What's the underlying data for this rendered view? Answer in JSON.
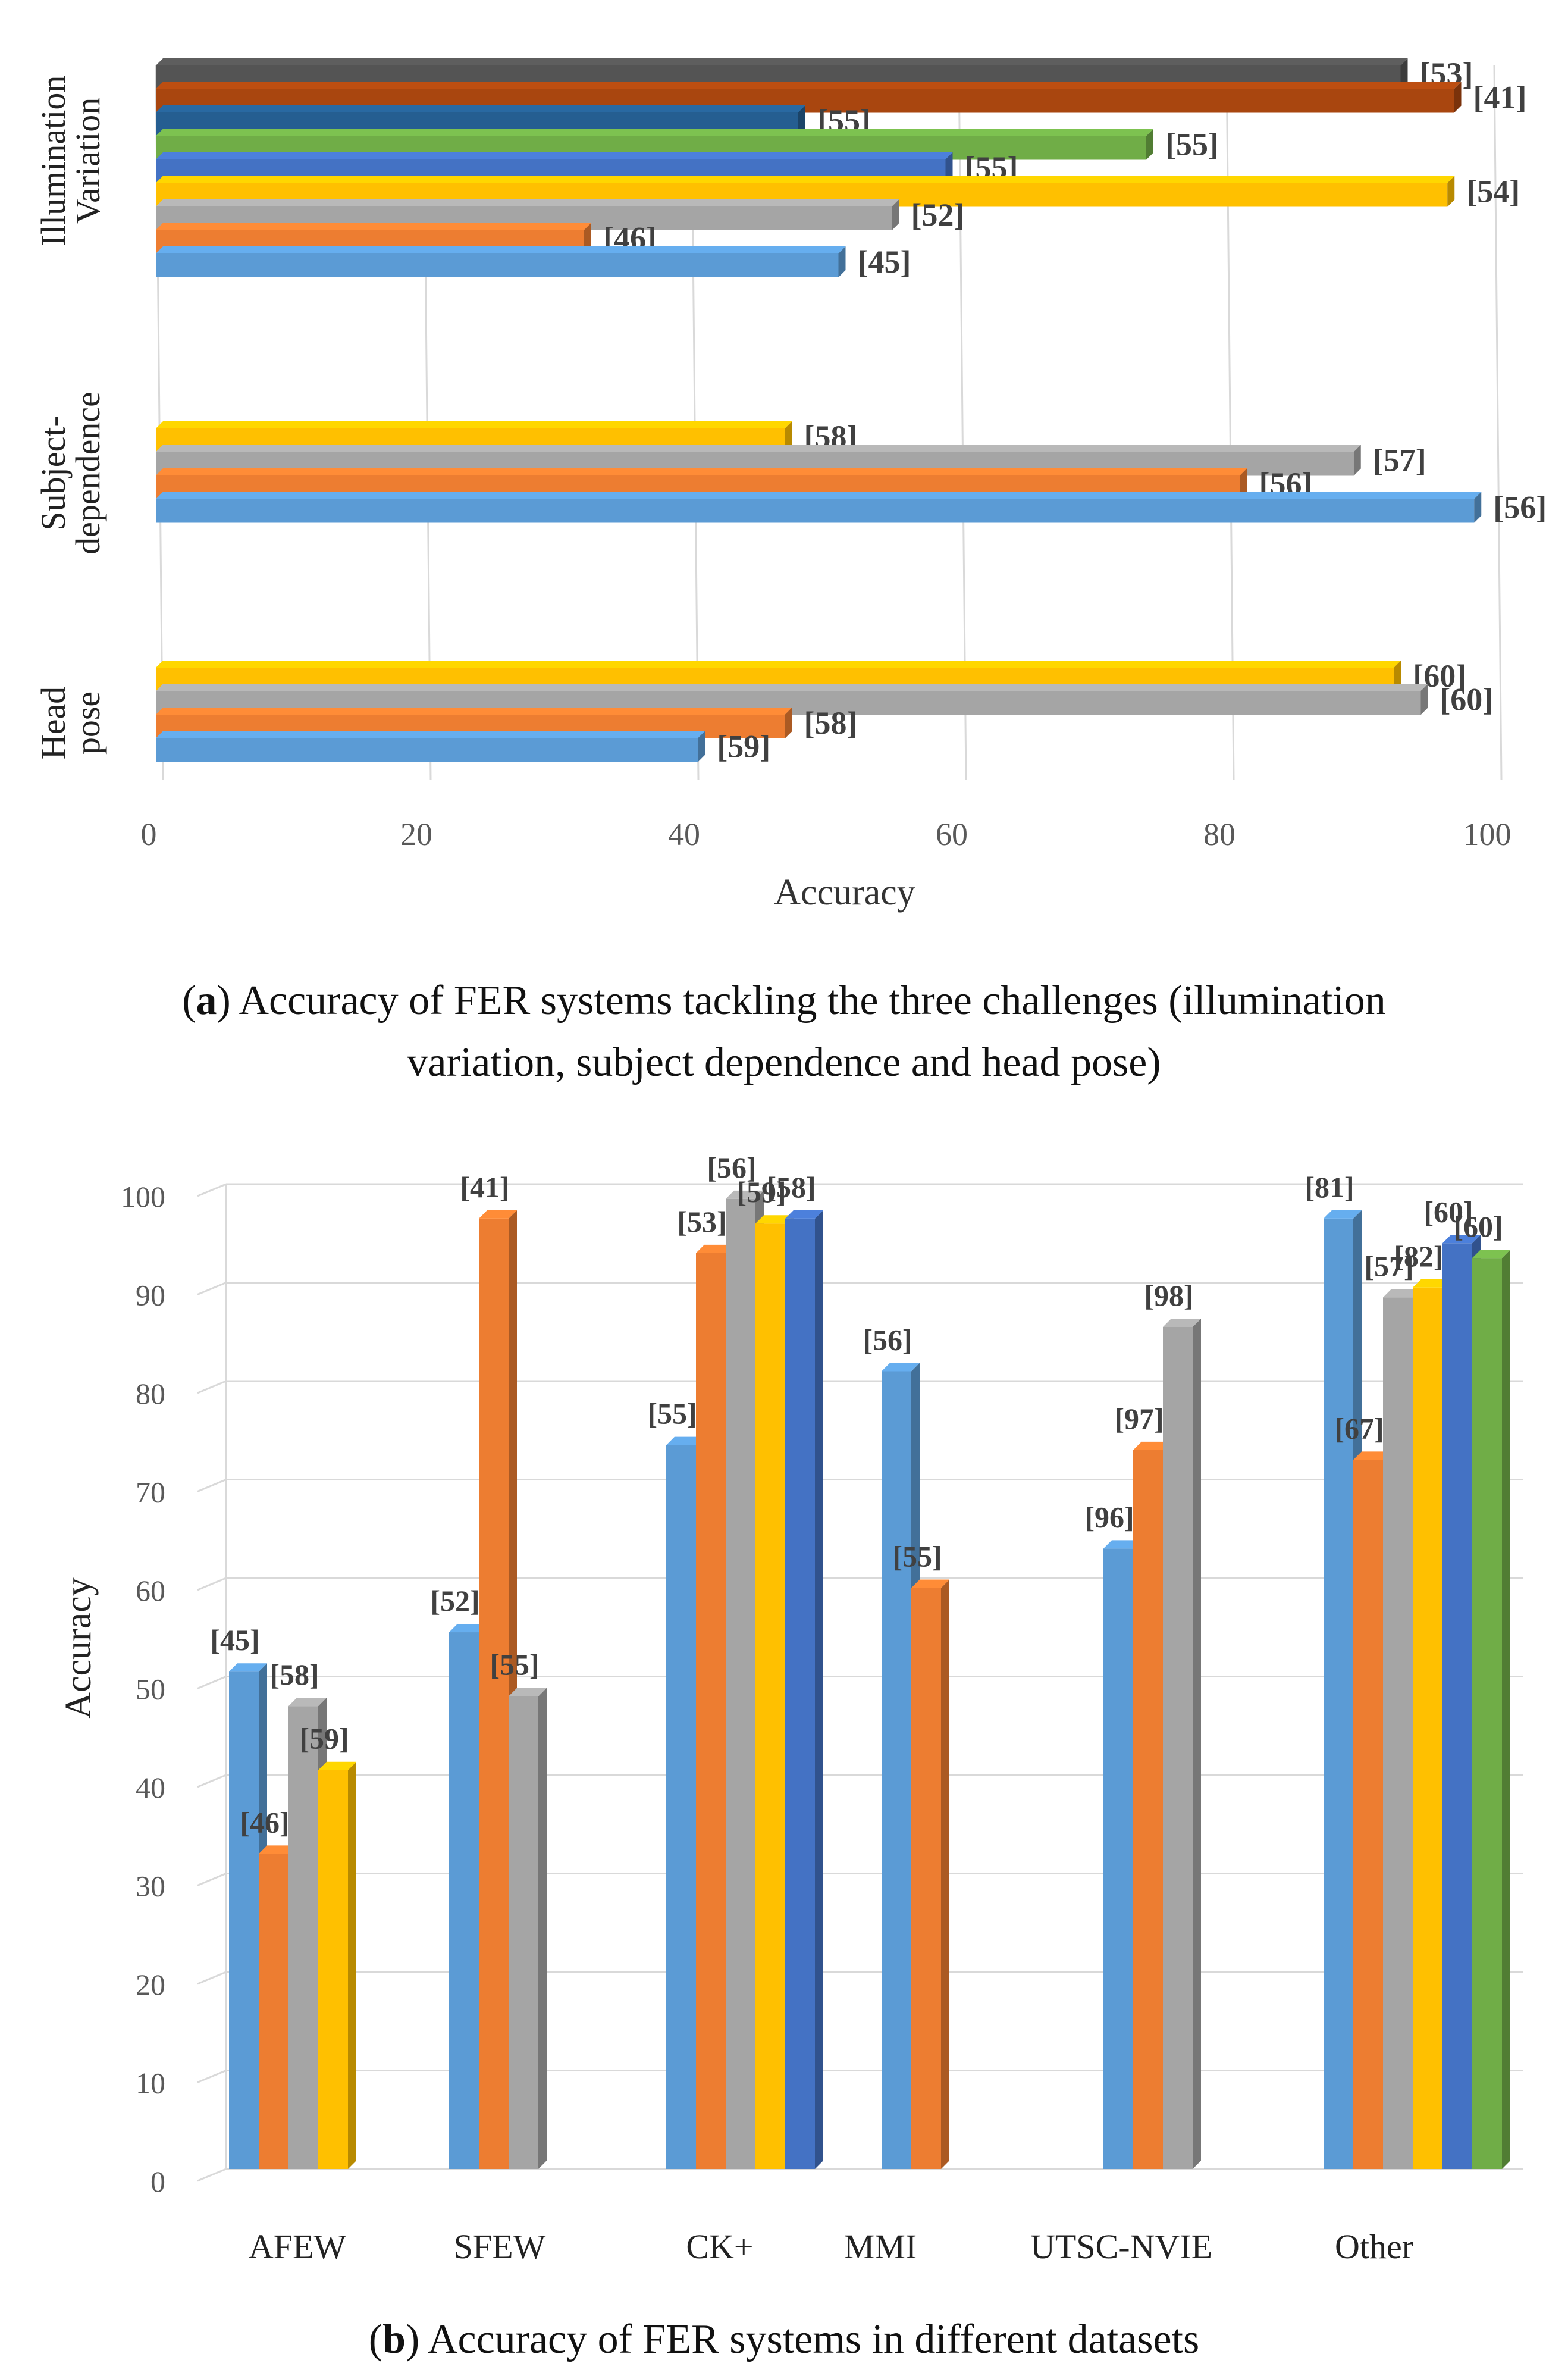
{
  "chart_data": [
    {
      "type": "bar",
      "orientation": "horizontal",
      "categories": [
        "Illumination Variation",
        "Subject-dependence",
        "Head pose"
      ],
      "category_lines": [
        [
          "Illumination",
          "Variation"
        ],
        [
          "Subject-",
          "dependence"
        ],
        [
          "Head",
          "pose"
        ]
      ],
      "groups": [
        {
          "category": "Illumination Variation",
          "bars": [
            {
              "label": "[53]",
              "value": 93,
              "color": "#545454"
            },
            {
              "label": "[41]",
              "value": 97,
              "color": "#a9460f"
            },
            {
              "label": "[55]",
              "value": 48,
              "color": "#255e91"
            },
            {
              "label": "[55]",
              "value": 74,
              "color": "#70ad47"
            },
            {
              "label": "[55]",
              "value": 59,
              "color": "#4472c4"
            },
            {
              "label": "[54]",
              "value": 96.5,
              "color": "#ffc000"
            },
            {
              "label": "[52]",
              "value": 55,
              "color": "#a5a5a5"
            },
            {
              "label": "[46]",
              "value": 32,
              "color": "#ed7d31"
            },
            {
              "label": "[45]",
              "value": 51,
              "color": "#5b9bd5"
            }
          ]
        },
        {
          "category": "Subject-dependence",
          "bars": [
            {
              "label": "[58]",
              "value": 47,
              "color": "#ffc000"
            },
            {
              "label": "[57]",
              "value": 89.5,
              "color": "#a5a5a5"
            },
            {
              "label": "[56]",
              "value": 81,
              "color": "#ed7d31"
            },
            {
              "label": "[56]",
              "value": 98.5,
              "color": "#5b9bd5"
            }
          ]
        },
        {
          "category": "Head pose",
          "bars": [
            {
              "label": "[60]",
              "value": 92.5,
              "color": "#ffc000"
            },
            {
              "label": "[60]",
              "value": 94.5,
              "color": "#a5a5a5"
            },
            {
              "label": "[58]",
              "value": 47,
              "color": "#ed7d31"
            },
            {
              "label": "[59]",
              "value": 40.5,
              "color": "#5b9bd5"
            }
          ]
        }
      ],
      "xlabel": "Accuracy",
      "xlim": [
        0,
        100
      ],
      "xticks": [
        "0",
        "20",
        "40",
        "60",
        "80",
        "100"
      ],
      "grid": "vertical"
    },
    {
      "type": "bar",
      "orientation": "vertical",
      "categories": [
        "AFEW",
        "SFEW",
        "CK+",
        "MMI",
        "UTSC-NVIE",
        "Other"
      ],
      "groups": [
        {
          "category": "AFEW",
          "bars": [
            {
              "label": "[45]",
              "value": 50.5,
              "color": "#5b9bd5"
            },
            {
              "label": "[46]",
              "value": 32,
              "color": "#ed7d31"
            },
            {
              "label": "[58]",
              "value": 47,
              "color": "#a5a5a5"
            },
            {
              "label": "[59]",
              "value": 40.5,
              "color": "#ffc000"
            }
          ]
        },
        {
          "category": "SFEW",
          "bars": [
            {
              "label": "[52]",
              "value": 54.5,
              "color": "#5b9bd5"
            },
            {
              "label": "[41]",
              "value": 96.5,
              "color": "#ed7d31"
            },
            {
              "label": "[55]",
              "value": 48,
              "color": "#a5a5a5"
            }
          ]
        },
        {
          "category": "CK+",
          "bars": [
            {
              "label": "[55]",
              "value": 73.5,
              "color": "#5b9bd5"
            },
            {
              "label": "[53]",
              "value": 93,
              "color": "#ed7d31"
            },
            {
              "label": "[56]",
              "value": 98.5,
              "color": "#a5a5a5"
            },
            {
              "label": "[59]",
              "value": 96,
              "color": "#ffc000"
            },
            {
              "label": "[58]",
              "value": 96.5,
              "color": "#4472c4"
            }
          ]
        },
        {
          "category": "MMI",
          "bars": [
            {
              "label": "[56]",
              "value": 81,
              "color": "#5b9bd5"
            },
            {
              "label": "[55]",
              "value": 59,
              "color": "#ed7d31"
            }
          ]
        },
        {
          "category": "UTSC-NVIE",
          "bars": [
            {
              "label": "[96]",
              "value": 63,
              "color": "#5b9bd5"
            },
            {
              "label": "[97]",
              "value": 73,
              "color": "#ed7d31"
            },
            {
              "label": "[98]",
              "value": 85.5,
              "color": "#a5a5a5"
            }
          ]
        },
        {
          "category": "Other",
          "bars": [
            {
              "label": "[81]",
              "value": 96.5,
              "color": "#5b9bd5"
            },
            {
              "label": "[67]",
              "value": 72,
              "color": "#ed7d31"
            },
            {
              "label": "[57]",
              "value": 88.5,
              "color": "#a5a5a5"
            },
            {
              "label": "[82]",
              "value": 89.5,
              "color": "#ffc000"
            },
            {
              "label": "[60]",
              "value": 94,
              "color": "#4472c4"
            },
            {
              "label": "[60]",
              "value": 92.5,
              "color": "#70ad47"
            }
          ]
        }
      ],
      "ylabel": "Accuracy",
      "ylim": [
        0,
        100
      ],
      "yticks": [
        "0",
        "10",
        "20",
        "30",
        "40",
        "50",
        "60",
        "70",
        "80",
        "90",
        "100"
      ],
      "grid": "horizontal"
    }
  ],
  "captions": {
    "a": {
      "letter": "a",
      "line1": " Accuracy of FER systems tackling the three challenges (illumination",
      "line2": "variation, subject dependence and head pose)"
    },
    "b": {
      "letter": "b",
      "line1": " Accuracy of FER systems in different datasets"
    }
  }
}
